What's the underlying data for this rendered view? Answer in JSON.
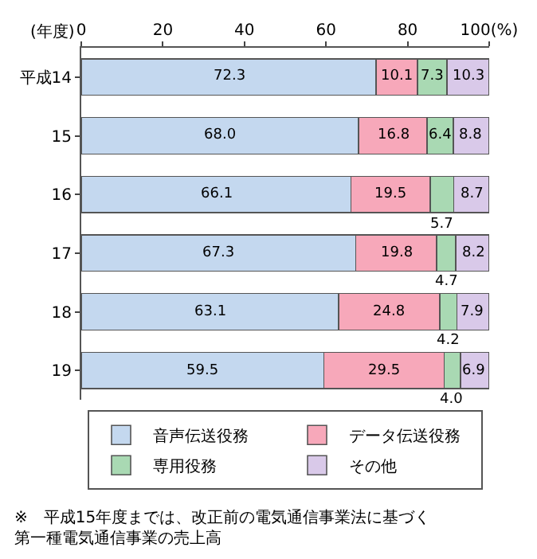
{
  "chart_data": {
    "type": "bar",
    "orientation": "horizontal",
    "stacked": true,
    "ylabel": "(年度)",
    "categories": [
      "平成14",
      "15",
      "16",
      "17",
      "18",
      "19"
    ],
    "series": [
      {
        "name": "音声伝送役務",
        "color": "#c4d8ef",
        "values": [
          72.3,
          68.0,
          66.1,
          67.3,
          63.1,
          59.5
        ],
        "value_labels": [
          "72.3",
          "68.0",
          "66.1",
          "67.3",
          "63.1",
          "59.5"
        ]
      },
      {
        "name": "データ伝送役務",
        "color": "#f7a8ba",
        "values": [
          10.1,
          16.8,
          19.5,
          19.8,
          24.8,
          29.5
        ],
        "value_labels": [
          "10.1",
          "16.8",
          "19.5",
          "19.8",
          "24.8",
          "29.5"
        ]
      },
      {
        "name": "専用役務",
        "color": "#a9d9b3",
        "values": [
          7.3,
          6.4,
          5.7,
          4.7,
          4.2,
          4.0
        ],
        "value_labels": [
          "7.3",
          "6.4",
          "5.7",
          "4.7",
          "4.2",
          "4.0"
        ]
      },
      {
        "name": "その他",
        "color": "#d9c9e9",
        "values": [
          10.3,
          8.8,
          8.7,
          8.2,
          7.9,
          6.9
        ],
        "value_labels": [
          "10.3",
          "8.8",
          "8.7",
          "8.2",
          "7.9",
          "6.9"
        ]
      }
    ],
    "xlim": [
      0,
      100
    ],
    "xticks": [
      0,
      20,
      40,
      60,
      80,
      {
        "value": 100,
        "label": "100(%)"
      }
    ],
    "legend": "bottom",
    "annotations": [
      "※　平成15年度までは、改正前の電気通信事業法に基づく第一種電気通信事業の売上高"
    ]
  }
}
